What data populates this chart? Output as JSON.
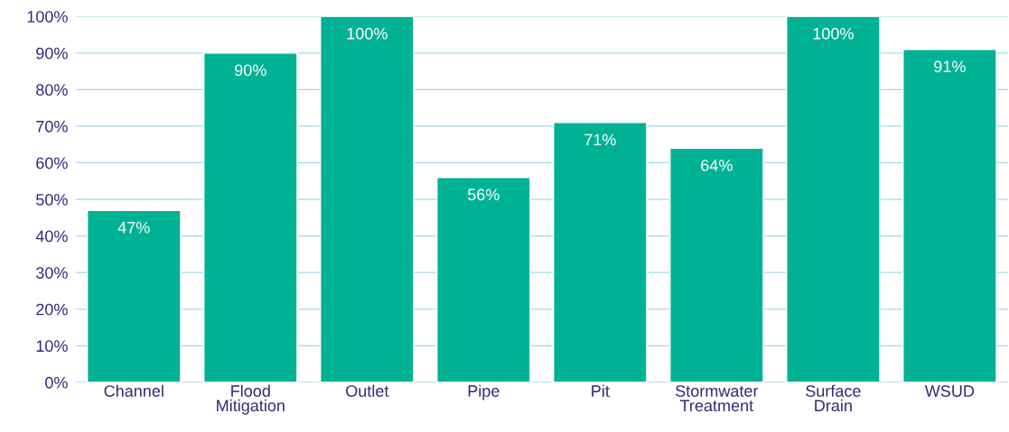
{
  "chart_data": {
    "type": "bar",
    "categories": [
      "Channel",
      "Flood\nMitigation",
      "Outlet",
      "Pipe",
      "Pit",
      "Stormwater\nTreatment",
      "Surface\nDrain",
      "WSUD"
    ],
    "values": [
      47,
      90,
      100,
      56,
      71,
      64,
      100,
      91
    ],
    "value_labels": [
      "47%",
      "90%",
      "100%",
      "56%",
      "71%",
      "64%",
      "100%",
      "91%"
    ],
    "color": "#00b294",
    "ylim": [
      0,
      100
    ],
    "yticks": [
      {
        "value": 0,
        "label": "0%"
      },
      {
        "value": 10,
        "label": "10%"
      },
      {
        "value": 20,
        "label": "20%"
      },
      {
        "value": 30,
        "label": "30%"
      },
      {
        "value": 40,
        "label": "40%"
      },
      {
        "value": 50,
        "label": "50%"
      },
      {
        "value": 60,
        "label": "60%"
      },
      {
        "value": 70,
        "label": "70%"
      },
      {
        "value": 80,
        "label": "80%"
      },
      {
        "value": 90,
        "label": "90%"
      },
      {
        "value": 100,
        "label": "100%"
      }
    ],
    "grid": "y"
  }
}
